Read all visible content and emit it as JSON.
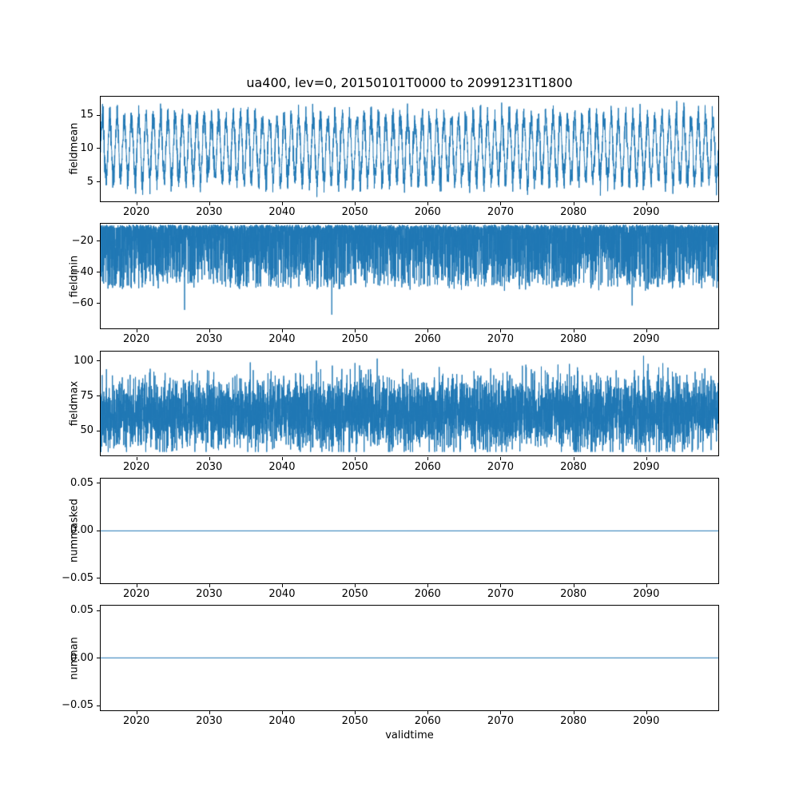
{
  "title": "ua400, lev=0, 20150101T0000 to 20991231T1800",
  "xlabel": "validtime",
  "line_color": "#1f77b4",
  "background": "#ffffff",
  "x": {
    "range": [
      2015,
      2100
    ],
    "ticks": [
      2020,
      2030,
      2040,
      2050,
      2060,
      2070,
      2080,
      2090
    ],
    "tick_labels": [
      "2020",
      "2030",
      "2040",
      "2050",
      "2060",
      "2070",
      "2080",
      "2090"
    ]
  },
  "chart_data": [
    {
      "type": "line",
      "name": "fieldmean",
      "ylabel": "fieldmean",
      "ylim": [
        2.1,
        17.8
      ],
      "ytick_values": [
        5,
        10,
        15
      ],
      "ytick_labels": [
        "5",
        "10",
        "15"
      ],
      "description": "dense annual oscillation around mean 10, envelope approx 3 to 18",
      "signal": {
        "kind": "seasonal",
        "points": 4500,
        "mean": 10,
        "amplitude": 4.6,
        "amplitude_jitter": 1.0,
        "noise_sd": 0.9,
        "approx_min": 3,
        "approx_max": 18
      }
    },
    {
      "type": "line",
      "name": "fieldmin",
      "ylabel": "fieldmin",
      "ylim": [
        -76,
        -9
      ],
      "ytick_values": [
        -20,
        -40,
        -60
      ],
      "ytick_labels": [
        "−20",
        "−40",
        "−60"
      ],
      "description": "dense noisy band with ceiling near -10, frequent downward spikes to about -75",
      "signal": {
        "kind": "spiky-down",
        "points": 6000,
        "ceiling": -9.5,
        "spread": 40,
        "deep_spike_prob": 0.006,
        "floor": -75,
        "approx_min": -75,
        "approx_max": -9
      }
    },
    {
      "type": "line",
      "name": "fieldmax",
      "ylabel": "fieldmax",
      "ylim": [
        32,
        107
      ],
      "ytick_values": [
        50,
        75,
        100
      ],
      "ytick_labels": [
        "50",
        "75",
        "100"
      ],
      "description": "dense noisy band centred near 63, envelope approx 35 to 105",
      "signal": {
        "kind": "noisy-band",
        "points": 6000,
        "mean": 63,
        "sd": 12.5,
        "clip": [
          35,
          105
        ],
        "approx_min": 35,
        "approx_max": 105
      }
    },
    {
      "type": "line",
      "name": "nummasked",
      "ylabel": "nummasked",
      "ylim": [
        -0.055,
        0.055
      ],
      "ytick_values": [
        0.05,
        0.0,
        -0.05
      ],
      "ytick_labels": [
        "0.05",
        "0.00",
        "−0.05"
      ],
      "description": "constant zero line",
      "signal": {
        "kind": "constant",
        "value": 0
      }
    },
    {
      "type": "line",
      "name": "numnan",
      "ylabel": "numnan",
      "ylim": [
        -0.055,
        0.055
      ],
      "ytick_values": [
        0.05,
        0.0,
        -0.05
      ],
      "ytick_labels": [
        "0.05",
        "0.00",
        "−0.05"
      ],
      "description": "constant zero line",
      "signal": {
        "kind": "constant",
        "value": 0
      }
    }
  ]
}
